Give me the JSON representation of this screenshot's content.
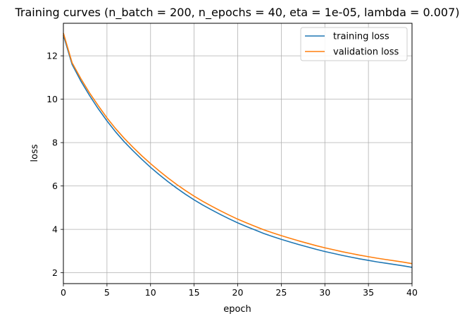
{
  "chart_data": {
    "type": "line",
    "title": "Training curves (n_batch = 200, n_epochs = 40, eta = 1e-05, lambda = 0.007)",
    "xlabel": "epoch",
    "ylabel": "loss",
    "xlim": [
      0,
      40
    ],
    "ylim": [
      1.5,
      13.5
    ],
    "xticks": [
      0,
      5,
      10,
      15,
      20,
      25,
      30,
      35,
      40
    ],
    "yticks": [
      2,
      4,
      6,
      8,
      10,
      12
    ],
    "grid": true,
    "legend_position": "top-right",
    "series": [
      {
        "name": "training loss",
        "color": "#1f77b4",
        "x": [
          0,
          1,
          2,
          3,
          4,
          5,
          6,
          7,
          8,
          9,
          10,
          11,
          12,
          13,
          14,
          15,
          16,
          17,
          18,
          19,
          20,
          21,
          22,
          23,
          24,
          25,
          26,
          27,
          28,
          29,
          30,
          31,
          32,
          33,
          34,
          35,
          36,
          37,
          38,
          39,
          40
        ],
        "values": [
          12.95,
          11.6,
          10.84,
          10.17,
          9.56,
          9.0,
          8.49,
          8.03,
          7.62,
          7.23,
          6.86,
          6.52,
          6.2,
          5.9,
          5.62,
          5.36,
          5.12,
          4.9,
          4.69,
          4.49,
          4.3,
          4.13,
          3.97,
          3.81,
          3.67,
          3.54,
          3.42,
          3.3,
          3.19,
          3.08,
          2.98,
          2.89,
          2.8,
          2.72,
          2.64,
          2.57,
          2.5,
          2.44,
          2.38,
          2.32,
          2.25
        ]
      },
      {
        "name": "validation loss",
        "color": "#ff7f0e",
        "x": [
          0,
          1,
          2,
          3,
          4,
          5,
          6,
          7,
          8,
          9,
          10,
          11,
          12,
          13,
          14,
          15,
          16,
          17,
          18,
          19,
          20,
          21,
          22,
          23,
          24,
          25,
          26,
          27,
          28,
          29,
          30,
          31,
          32,
          33,
          34,
          35,
          36,
          37,
          38,
          39,
          40
        ],
        "values": [
          13.05,
          11.68,
          10.95,
          10.29,
          9.7,
          9.14,
          8.64,
          8.19,
          7.78,
          7.39,
          7.03,
          6.69,
          6.37,
          6.07,
          5.79,
          5.53,
          5.29,
          5.07,
          4.86,
          4.66,
          4.47,
          4.3,
          4.14,
          3.98,
          3.84,
          3.71,
          3.59,
          3.47,
          3.36,
          3.25,
          3.15,
          3.06,
          2.97,
          2.89,
          2.81,
          2.74,
          2.67,
          2.61,
          2.55,
          2.49,
          2.42
        ]
      }
    ]
  }
}
